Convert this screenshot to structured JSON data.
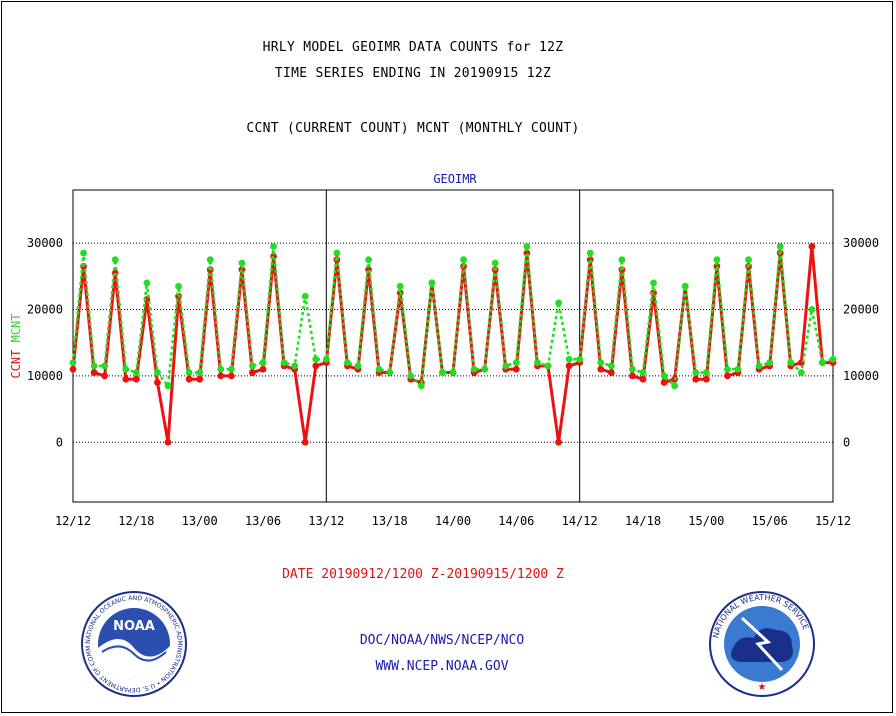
{
  "header": {
    "title_line1": "HRLY MODEL GEOIMR DATA COUNTS for 12Z",
    "title_line2": "TIME SERIES ENDING IN 20190915 12Z",
    "subtitle": "CCNT (CURRENT COUNT) MCNT (MONTHLY COUNT)"
  },
  "footer": {
    "date_range": "DATE 20190912/1200 Z-20190915/1200 Z",
    "org": "DOC/NOAA/NWS/NCEP/NCO",
    "url": "WWW.NCEP.NOAA.GOV"
  },
  "logos": {
    "noaa_text": "NOAA",
    "noaa_ring": "NATIONAL OCEANIC AND ATMOSPHERIC ADMINISTRATION • U.S. DEPARTMENT OF COMMERCE",
    "nws_ring": "NATIONAL WEATHER SERVICE"
  },
  "chart_data": {
    "type": "line",
    "title": "GEOIMR",
    "ylabel_parts": [
      {
        "text": "CCNT",
        "color": "#ee1111"
      },
      {
        "text": "MCNT",
        "color": "#22dd22"
      }
    ],
    "x": [
      0,
      1,
      2,
      3,
      4,
      5,
      6,
      7,
      8,
      9,
      10,
      11,
      12,
      13,
      14,
      15,
      16,
      17,
      18,
      19,
      20,
      21,
      22,
      23,
      24,
      25,
      26,
      27,
      28,
      29,
      30,
      31,
      32,
      33,
      34,
      35,
      36,
      37,
      38,
      39,
      40,
      41,
      42,
      43,
      44,
      45,
      46,
      47,
      48,
      49,
      50,
      51,
      52,
      53,
      54,
      55,
      56,
      57,
      58,
      59,
      60,
      61,
      62,
      63,
      64,
      65,
      66,
      67,
      68,
      69,
      70,
      71,
      72
    ],
    "x_unit": "hours from 2019-09-12 12Z",
    "xlim": [
      0,
      72
    ],
    "ylim": [
      -9000,
      38000
    ],
    "yticks": [
      0,
      10000,
      20000,
      30000
    ],
    "ytick_labels": [
      "0",
      "10000",
      "20000",
      "30000"
    ],
    "xticks": [
      0,
      6,
      12,
      18,
      24,
      30,
      36,
      42,
      48,
      54,
      60,
      66,
      72
    ],
    "xtick_labels": [
      "12/12",
      "12/18",
      "13/00",
      "13/06",
      "13/12",
      "13/18",
      "14/00",
      "14/06",
      "14/12",
      "14/18",
      "15/00",
      "15/06",
      "15/12"
    ],
    "day_separators": [
      24,
      48
    ],
    "grid": "horizontal dotted",
    "series": [
      {
        "name": "CCNT",
        "color": "#ee1111",
        "style": "solid",
        "values": [
          11000,
          26500,
          10500,
          10000,
          25500,
          9500,
          9500,
          21500,
          9000,
          0,
          22000,
          9500,
          9500,
          26000,
          10000,
          10000,
          26000,
          10500,
          11000,
          28000,
          11500,
          11000,
          0,
          11500,
          12000,
          27500,
          11500,
          11000,
          26000,
          10500,
          10500,
          22500,
          9500,
          9000,
          24000,
          10500,
          10500,
          26500,
          10500,
          11000,
          26000,
          11000,
          11000,
          28500,
          11500,
          11500,
          0,
          11500,
          12000,
          27500,
          11000,
          10500,
          26000,
          10000,
          9500,
          22500,
          9000,
          9500,
          23500,
          9500,
          9500,
          26500,
          10000,
          10500,
          26500,
          11000,
          11500,
          28500,
          11500,
          12000,
          29500,
          12000,
          12000
        ]
      },
      {
        "name": "MCNT",
        "color": "#22dd22",
        "style": "dotted",
        "values": [
          12000,
          28500,
          11500,
          11500,
          27500,
          11000,
          10500,
          24000,
          10500,
          8500,
          23500,
          10500,
          10500,
          27500,
          11000,
          11000,
          27000,
          11500,
          12000,
          29500,
          12000,
          11500,
          22000,
          12500,
          12500,
          28500,
          12000,
          11500,
          27500,
          11000,
          10500,
          23500,
          10000,
          8500,
          24000,
          10500,
          10500,
          27500,
          11000,
          11000,
          27000,
          11500,
          12000,
          29500,
          12000,
          11500,
          21000,
          12500,
          12500,
          28500,
          12000,
          11500,
          27500,
          11000,
          10500,
          24000,
          10000,
          8500,
          23500,
          10500,
          10500,
          27500,
          11000,
          11000,
          27500,
          11500,
          12000,
          29500,
          12000,
          10500,
          20000,
          12000,
          12500
        ]
      }
    ]
  }
}
